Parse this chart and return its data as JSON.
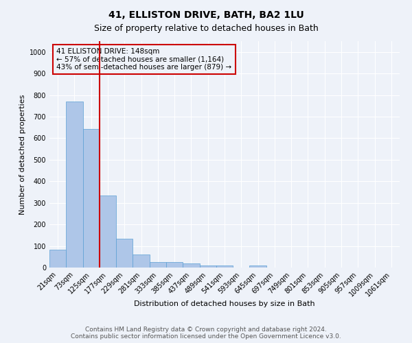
{
  "title1": "41, ELLISTON DRIVE, BATH, BA2 1LU",
  "title2": "Size of property relative to detached houses in Bath",
  "xlabel": "Distribution of detached houses by size in Bath",
  "ylabel": "Number of detached properties",
  "bar_labels": [
    "21sqm",
    "73sqm",
    "125sqm",
    "177sqm",
    "229sqm",
    "281sqm",
    "333sqm",
    "385sqm",
    "437sqm",
    "489sqm",
    "541sqm",
    "593sqm",
    "645sqm",
    "697sqm",
    "749sqm",
    "801sqm",
    "853sqm",
    "905sqm",
    "957sqm",
    "1009sqm",
    "1061sqm"
  ],
  "bar_values": [
    83,
    770,
    643,
    333,
    135,
    60,
    25,
    25,
    18,
    8,
    8,
    0,
    10,
    0,
    0,
    0,
    0,
    0,
    0,
    0,
    0
  ],
  "bar_color": "#aec6e8",
  "bar_edge_color": "#5a9fd4",
  "vline_color": "#cc0000",
  "annotation_text": "41 ELLISTON DRIVE: 148sqm\n← 57% of detached houses are smaller (1,164)\n43% of semi-detached houses are larger (879) →",
  "annotation_box_color": "#cc0000",
  "ylim": [
    0,
    1050
  ],
  "yticks": [
    0,
    100,
    200,
    300,
    400,
    500,
    600,
    700,
    800,
    900,
    1000
  ],
  "footer_text": "Contains HM Land Registry data © Crown copyright and database right 2024.\nContains public sector information licensed under the Open Government Licence v3.0.",
  "background_color": "#eef2f9",
  "grid_color": "#ffffff",
  "title1_fontsize": 10,
  "title2_fontsize": 9,
  "xlabel_fontsize": 8,
  "ylabel_fontsize": 8,
  "tick_fontsize": 7,
  "annotation_fontsize": 7.5,
  "footer_fontsize": 6.5
}
